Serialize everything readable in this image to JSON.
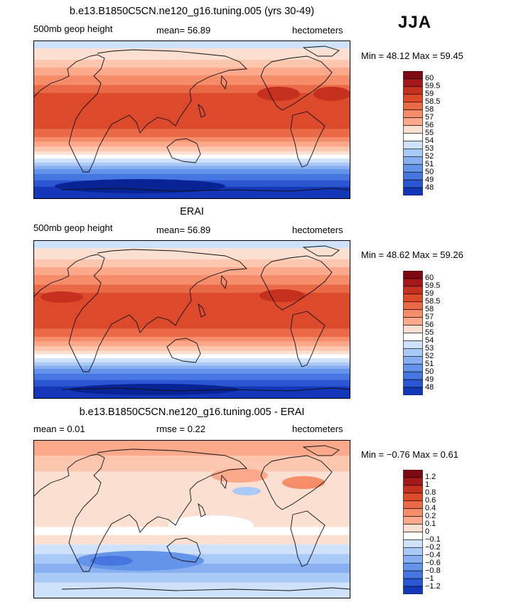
{
  "season": "JJA",
  "colors": {
    "pos": [
      "#fbe0d2",
      "#fcc7ae",
      "#fba98a",
      "#f58c6a",
      "#ea6a47",
      "#dd4a2b",
      "#c5311e",
      "#a4181a",
      "#7d0a12"
    ],
    "neg": [
      "#ffffff",
      "#cfe2fb",
      "#a9c9f6",
      "#88b0f0",
      "#6494e9",
      "#4677e1",
      "#2a56d4",
      "#1437b9",
      "#082393"
    ]
  },
  "chart_data": [
    {
      "type": "heatmap",
      "title": "b.e13.B1850C5CN.ne120_g16.tuning.005 (yrs 30-49)",
      "left_label": "500mb geop height",
      "center_label": "mean=  56.89",
      "units": "hectometers",
      "min_max": "Min =  48.12  Max =  59.45",
      "levels": [
        "60",
        "59.5",
        "59",
        "58.5",
        "58",
        "57",
        "56",
        "55",
        "54",
        "53",
        "52",
        "51",
        "50",
        "49",
        "48"
      ],
      "mean": 56.89,
      "min": 48.12,
      "max": 59.45
    },
    {
      "type": "heatmap",
      "title": "ERAI",
      "left_label": "500mb geop height",
      "center_label": "mean=  56.89",
      "units": "hectometers",
      "min_max": "Min =  48.62  Max =  59.26",
      "levels": [
        "60",
        "59.5",
        "59",
        "58.5",
        "58",
        "57",
        "56",
        "55",
        "54",
        "53",
        "52",
        "51",
        "50",
        "49",
        "48"
      ],
      "mean": 56.89,
      "min": 48.62,
      "max": 59.26
    },
    {
      "type": "heatmap",
      "title": "b.e13.B1850C5CN.ne120_g16.tuning.005 - ERAI",
      "left_label": "mean =   0.01",
      "center_label": "rmse =   0.22",
      "units": "hectometers",
      "min_max": "Min =  −0.76  Max =   0.61",
      "levels": [
        "1.2",
        "1",
        "0.8",
        "0.6",
        "0.4",
        "0.2",
        "0.1",
        "0",
        "−0.1",
        "−0.2",
        "−0.4",
        "−0.6",
        "−0.8",
        "−1",
        "−1.2"
      ],
      "mean": 0.01,
      "rmse": 0.22,
      "min": -0.76,
      "max": 0.61
    }
  ]
}
